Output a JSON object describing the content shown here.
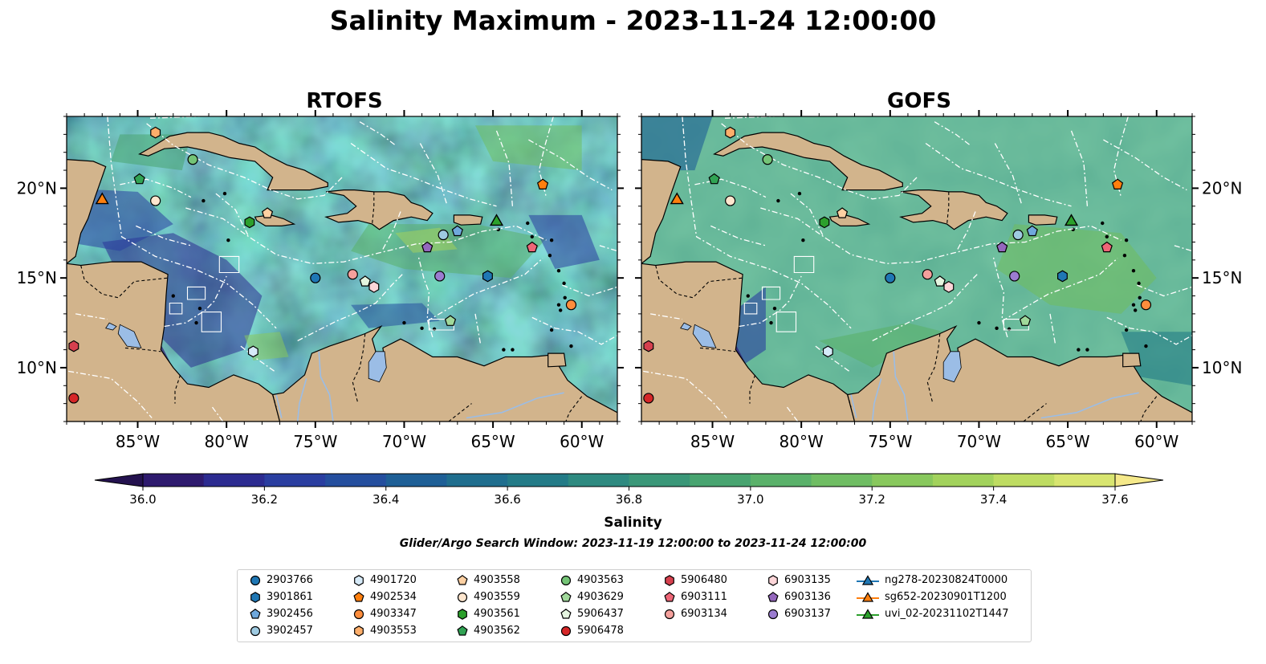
{
  "title": "Salinity Maximum - 2023-11-24 12:00:00",
  "panels": [
    {
      "title": "RTOFS",
      "sea_color": "#3f9a82",
      "palette": "rtofs"
    },
    {
      "title": "GOFS",
      "sea_color": "#3f9a82",
      "palette": "gofs"
    }
  ],
  "map": {
    "lon_range": [
      -89,
      -58
    ],
    "lat_range": [
      7,
      24
    ],
    "lon_ticks": [
      {
        "v": -85,
        "label": "85°W"
      },
      {
        "v": -80,
        "label": "80°W"
      },
      {
        "v": -75,
        "label": "75°W"
      },
      {
        "v": -70,
        "label": "70°W"
      },
      {
        "v": -65,
        "label": "65°W"
      },
      {
        "v": -60,
        "label": "60°W"
      }
    ],
    "lat_ticks": [
      {
        "v": 20,
        "label": "20°N"
      },
      {
        "v": 15,
        "label": "15°N"
      },
      {
        "v": 10,
        "label": "10°N"
      }
    ],
    "land_color": "#d2b48c",
    "lake_color": "#9bbde6"
  },
  "colorbar": {
    "label": "Salinity",
    "min": 36.0,
    "max": 37.6,
    "step": 0.1,
    "ticks": [
      "36.0",
      "36.2",
      "36.4",
      "36.6",
      "36.8",
      "37.0",
      "37.2",
      "37.4",
      "37.6"
    ],
    "colors": [
      "#2e1a6e",
      "#2c2b90",
      "#2a3ea0",
      "#244e9e",
      "#1e5f96",
      "#1f6e8e",
      "#237b87",
      "#2e8a80",
      "#3a9778",
      "#48a470",
      "#5ab16a",
      "#6fbd63",
      "#88c85d",
      "#a2d25c",
      "#bedc62",
      "#d8e570"
    ],
    "under_color": "#24124f",
    "over_color": "#f5e98a"
  },
  "search_window": "Glider/Argo Search Window: 2023-11-19 12:00:00 to 2023-11-24 12:00:00",
  "stations": [
    {
      "id": "2903766",
      "marker": "circle",
      "color": "#1f77b4",
      "lon": -75.0,
      "lat": 15.0
    },
    {
      "id": "3901861",
      "marker": "hexagon",
      "color": "#1f77b4",
      "lon": -65.3,
      "lat": 15.1
    },
    {
      "id": "3902456",
      "marker": "pentagon",
      "color": "#6fa8dc",
      "lon": -67.0,
      "lat": 17.6
    },
    {
      "id": "3902457",
      "marker": "circle",
      "color": "#9ecae1",
      "lon": -67.8,
      "lat": 17.4
    },
    {
      "id": "4901720",
      "marker": "hexagon",
      "color": "#d6eaf8",
      "lon": -78.5,
      "lat": 10.9
    },
    {
      "id": "4902534",
      "marker": "pentagon",
      "color": "#ff7f0e",
      "lon": -62.2,
      "lat": 20.2
    },
    {
      "id": "4903347",
      "marker": "circle",
      "color": "#fd8d3c",
      "lon": -60.6,
      "lat": 13.5
    },
    {
      "id": "4903553",
      "marker": "hexagon",
      "color": "#fdae6b",
      "lon": -84.0,
      "lat": 23.1
    },
    {
      "id": "4903558",
      "marker": "pentagon",
      "color": "#fdd0a2",
      "lon": -77.7,
      "lat": 18.6
    },
    {
      "id": "4903559",
      "marker": "circle",
      "color": "#fee6ce",
      "lon": -84.0,
      "lat": 19.3
    },
    {
      "id": "4903561",
      "marker": "hexagon",
      "color": "#2ca02c",
      "lon": -78.7,
      "lat": 18.1
    },
    {
      "id": "4903562",
      "marker": "pentagon",
      "color": "#31a354",
      "lon": -84.9,
      "lat": 20.5
    },
    {
      "id": "4903563",
      "marker": "circle",
      "color": "#74c476",
      "lon": -81.9,
      "lat": 21.6
    },
    {
      "id": "4903629",
      "marker": "pentagon",
      "color": "#a1d99b",
      "lon": -67.4,
      "lat": 12.6
    },
    {
      "id": "5906437",
      "marker": "pentagon",
      "color": "#e5f5e0",
      "lon": -72.2,
      "lat": 14.8
    },
    {
      "id": "5906478",
      "marker": "circle",
      "color": "#d62728",
      "lon": -88.6,
      "lat": 8.3
    },
    {
      "id": "5906480",
      "marker": "hexagon",
      "color": "#d6404e",
      "lon": -88.6,
      "lat": 11.2
    },
    {
      "id": "6903111",
      "marker": "pentagon",
      "color": "#ee6677",
      "lon": -62.8,
      "lat": 16.7
    },
    {
      "id": "6903134",
      "marker": "circle",
      "color": "#f4a09c",
      "lon": -72.9,
      "lat": 15.2
    },
    {
      "id": "6903135",
      "marker": "hexagon",
      "color": "#fcd5d8",
      "lon": -71.7,
      "lat": 14.5
    },
    {
      "id": "6903136",
      "marker": "pentagon",
      "color": "#9467bd",
      "lon": -68.7,
      "lat": 16.7
    },
    {
      "id": "6903137",
      "marker": "circle",
      "color": "#9b7cd0",
      "lon": -68.0,
      "lat": 15.1
    }
  ],
  "gliders": [
    {
      "id": "ng278-20230824T0000",
      "color": "#1f77b4",
      "lon": null,
      "lat": null
    },
    {
      "id": "sg652-20230901T1200",
      "color": "#ff7f0e",
      "lon": -87.0,
      "lat": 19.4
    },
    {
      "id": "uvi_02-20231102T1447",
      "color": "#2ca02c",
      "lon": -64.8,
      "lat": 18.2
    }
  ]
}
